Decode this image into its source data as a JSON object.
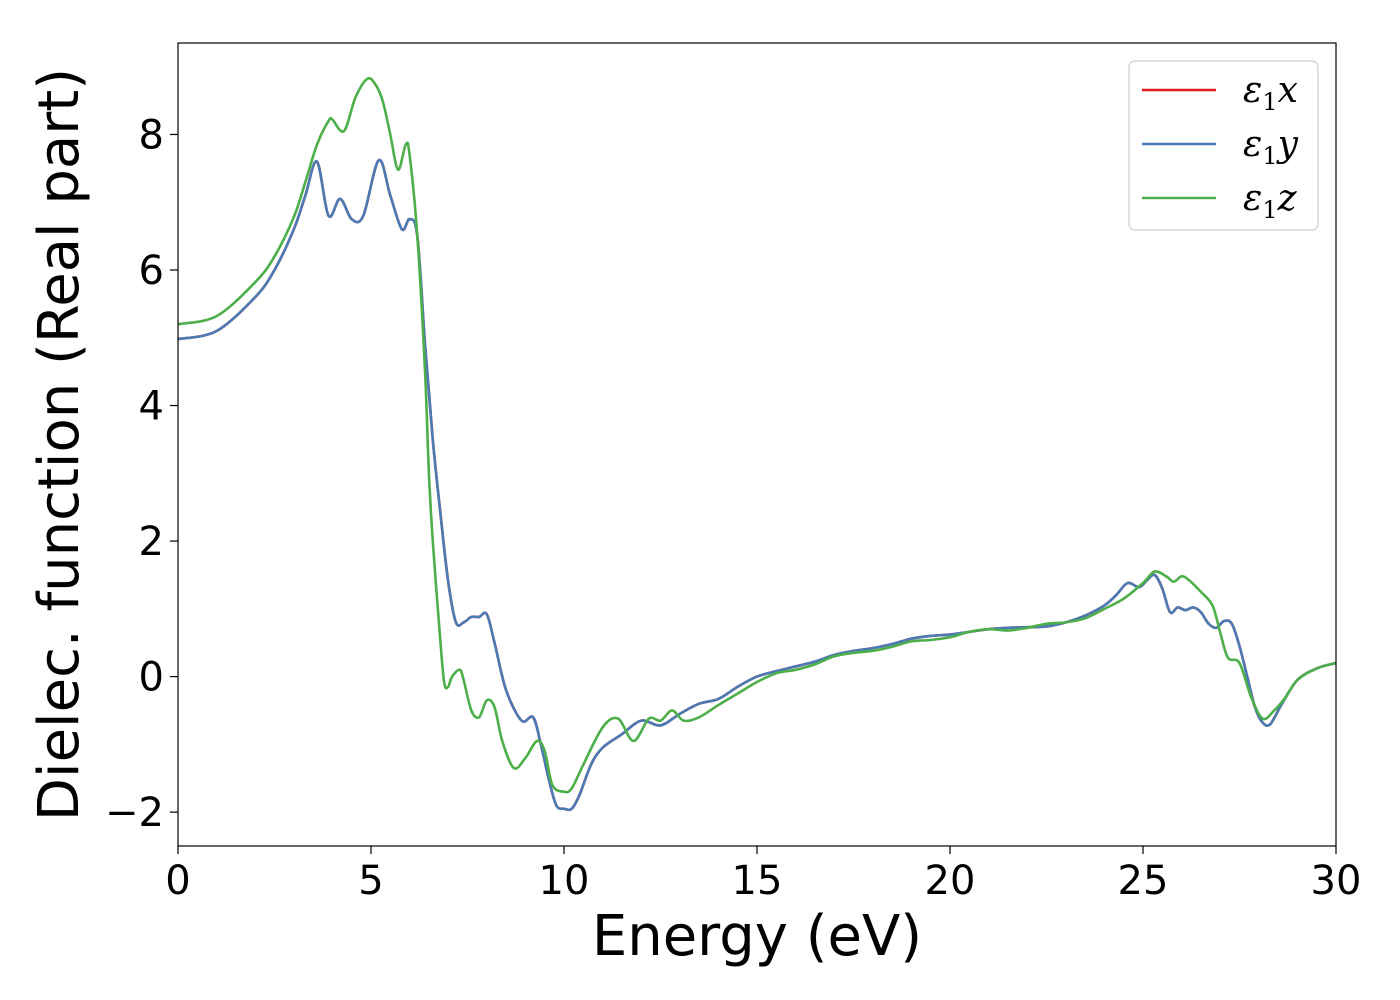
{
  "chart_data": {
    "type": "line",
    "title": "",
    "xlabel": "Energy (eV)",
    "ylabel": "Dielec. function (Real part)",
    "xlim": [
      0,
      30
    ],
    "ylim": [
      -2.5,
      9.35
    ],
    "xticks": [
      0,
      5,
      10,
      15,
      20,
      25,
      30
    ],
    "xtick_labels": [
      "0",
      "5",
      "10",
      "15",
      "20",
      "25",
      "30"
    ],
    "yticks": [
      -2,
      0,
      2,
      4,
      6,
      8
    ],
    "ytick_labels": [
      "−2",
      "0",
      "2",
      "4",
      "6",
      "8"
    ],
    "grid": false,
    "legend_position": "top-right",
    "series": [
      {
        "name": "ε1x",
        "legend_main": "ε",
        "legend_sub": "1",
        "legend_tail": "x",
        "color": "#e41a1c",
        "x": [
          0,
          1,
          2,
          2.5,
          3,
          3.3,
          3.6,
          3.9,
          4.2,
          4.5,
          4.8,
          5.2,
          5.5,
          5.8,
          6.0,
          6.2,
          6.4,
          6.6,
          6.8,
          7.0,
          7.2,
          7.4,
          7.6,
          7.8,
          8.0,
          8.2,
          8.5,
          8.9,
          9.2,
          9.4,
          9.6,
          9.8,
          10.0,
          10.2,
          10.4,
          10.7,
          11.0,
          11.5,
          12.0,
          12.5,
          13.0,
          13.5,
          14.0,
          14.5,
          15.0,
          15.5,
          16.0,
          16.5,
          17.0,
          17.5,
          18.0,
          18.5,
          19.0,
          19.5,
          20.0,
          20.5,
          21.0,
          21.5,
          22.0,
          22.5,
          23.0,
          23.5,
          24.0,
          24.3,
          24.6,
          24.9,
          25.1,
          25.3,
          25.5,
          25.7,
          25.9,
          26.1,
          26.3,
          26.5,
          26.7,
          26.9,
          27.1,
          27.3,
          27.5,
          27.7,
          27.9,
          28.1,
          28.3,
          28.6,
          29.0,
          29.5,
          30.0
        ],
        "y": [
          4.98,
          5.1,
          5.6,
          6.0,
          6.6,
          7.1,
          7.6,
          6.8,
          7.05,
          6.75,
          6.8,
          7.62,
          7.1,
          6.6,
          6.75,
          6.5,
          4.9,
          3.5,
          2.4,
          1.4,
          0.8,
          0.8,
          0.88,
          0.88,
          0.92,
          0.5,
          -0.2,
          -0.65,
          -0.6,
          -1.0,
          -1.5,
          -1.9,
          -1.95,
          -1.95,
          -1.75,
          -1.3,
          -1.05,
          -0.85,
          -0.65,
          -0.72,
          -0.55,
          -0.4,
          -0.33,
          -0.15,
          0.0,
          0.08,
          0.15,
          0.22,
          0.32,
          0.38,
          0.42,
          0.48,
          0.56,
          0.6,
          0.62,
          0.66,
          0.7,
          0.72,
          0.73,
          0.74,
          0.8,
          0.9,
          1.05,
          1.2,
          1.38,
          1.32,
          1.42,
          1.5,
          1.3,
          0.95,
          1.02,
          0.98,
          1.02,
          0.95,
          0.78,
          0.72,
          0.82,
          0.78,
          0.45,
          0.0,
          -0.45,
          -0.68,
          -0.7,
          -0.4,
          -0.05,
          0.12,
          0.2
        ]
      },
      {
        "name": "ε1y",
        "legend_main": "ε",
        "legend_sub": "1",
        "legend_tail": "y",
        "color": "#4a7bb5",
        "x": [
          0,
          1,
          2,
          2.5,
          3,
          3.3,
          3.6,
          3.9,
          4.2,
          4.5,
          4.8,
          5.2,
          5.5,
          5.8,
          6.0,
          6.2,
          6.4,
          6.6,
          6.8,
          7.0,
          7.2,
          7.4,
          7.6,
          7.8,
          8.0,
          8.2,
          8.5,
          8.9,
          9.2,
          9.4,
          9.6,
          9.8,
          10.0,
          10.2,
          10.4,
          10.7,
          11.0,
          11.5,
          12.0,
          12.5,
          13.0,
          13.5,
          14.0,
          14.5,
          15.0,
          15.5,
          16.0,
          16.5,
          17.0,
          17.5,
          18.0,
          18.5,
          19.0,
          19.5,
          20.0,
          20.5,
          21.0,
          21.5,
          22.0,
          22.5,
          23.0,
          23.5,
          24.0,
          24.3,
          24.6,
          24.9,
          25.1,
          25.3,
          25.5,
          25.7,
          25.9,
          26.1,
          26.3,
          26.5,
          26.7,
          26.9,
          27.1,
          27.3,
          27.5,
          27.7,
          27.9,
          28.1,
          28.3,
          28.6,
          29.0,
          29.5,
          30.0
        ],
        "y": [
          4.98,
          5.1,
          5.6,
          6.0,
          6.6,
          7.1,
          7.6,
          6.8,
          7.05,
          6.75,
          6.8,
          7.62,
          7.1,
          6.6,
          6.75,
          6.5,
          4.9,
          3.5,
          2.4,
          1.4,
          0.8,
          0.8,
          0.88,
          0.88,
          0.92,
          0.5,
          -0.2,
          -0.65,
          -0.6,
          -1.0,
          -1.5,
          -1.9,
          -1.95,
          -1.95,
          -1.75,
          -1.3,
          -1.05,
          -0.85,
          -0.65,
          -0.72,
          -0.55,
          -0.4,
          -0.33,
          -0.15,
          0.0,
          0.08,
          0.15,
          0.22,
          0.32,
          0.38,
          0.42,
          0.48,
          0.56,
          0.6,
          0.62,
          0.66,
          0.7,
          0.72,
          0.73,
          0.74,
          0.8,
          0.9,
          1.05,
          1.2,
          1.38,
          1.32,
          1.42,
          1.5,
          1.3,
          0.95,
          1.02,
          0.98,
          1.02,
          0.95,
          0.78,
          0.72,
          0.82,
          0.78,
          0.45,
          0.0,
          -0.45,
          -0.68,
          -0.7,
          -0.4,
          -0.05,
          0.12,
          0.2
        ]
      },
      {
        "name": "ε1z",
        "legend_main": "ε",
        "legend_sub": "1",
        "legend_tail": "z",
        "color": "#4daf4a",
        "x": [
          0,
          1,
          2,
          2.5,
          3,
          3.3,
          3.6,
          3.9,
          4.0,
          4.3,
          4.6,
          4.9,
          5.1,
          5.3,
          5.5,
          5.7,
          5.9,
          6.0,
          6.2,
          6.4,
          6.5,
          6.6,
          6.8,
          6.9,
          7.0,
          7.1,
          7.3,
          7.4,
          7.6,
          7.8,
          8.0,
          8.2,
          8.4,
          8.7,
          9.0,
          9.3,
          9.5,
          9.7,
          10.0,
          10.2,
          10.5,
          11.0,
          11.4,
          11.8,
          12.2,
          12.5,
          12.8,
          13.1,
          13.5,
          14.0,
          14.5,
          15.0,
          15.5,
          16.0,
          16.5,
          17.0,
          17.5,
          18.0,
          18.5,
          19.0,
          19.5,
          20.0,
          20.5,
          21.0,
          21.5,
          22.0,
          22.5,
          23.0,
          23.5,
          24.0,
          24.5,
          25.0,
          25.3,
          25.6,
          25.8,
          26.0,
          26.2,
          26.5,
          26.8,
          27.0,
          27.2,
          27.5,
          27.8,
          28.1,
          28.4,
          28.7,
          29.0,
          29.5,
          30.0
        ],
        "y": [
          5.2,
          5.32,
          5.82,
          6.2,
          6.78,
          7.3,
          7.85,
          8.2,
          8.22,
          8.05,
          8.55,
          8.82,
          8.75,
          8.5,
          8.0,
          7.48,
          7.85,
          7.7,
          6.5,
          4.5,
          3.0,
          2.0,
          0.5,
          -0.1,
          -0.15,
          0.0,
          0.1,
          -0.05,
          -0.5,
          -0.6,
          -0.35,
          -0.45,
          -0.95,
          -1.35,
          -1.2,
          -0.95,
          -1.1,
          -1.6,
          -1.7,
          -1.65,
          -1.3,
          -0.75,
          -0.62,
          -0.95,
          -0.62,
          -0.65,
          -0.5,
          -0.65,
          -0.6,
          -0.42,
          -0.25,
          -0.08,
          0.05,
          0.1,
          0.18,
          0.3,
          0.35,
          0.38,
          0.44,
          0.52,
          0.54,
          0.58,
          0.66,
          0.7,
          0.68,
          0.72,
          0.78,
          0.8,
          0.86,
          1.0,
          1.15,
          1.38,
          1.55,
          1.48,
          1.4,
          1.48,
          1.42,
          1.25,
          1.05,
          0.65,
          0.28,
          0.2,
          -0.3,
          -0.62,
          -0.5,
          -0.3,
          -0.05,
          0.12,
          0.2
        ]
      }
    ]
  }
}
